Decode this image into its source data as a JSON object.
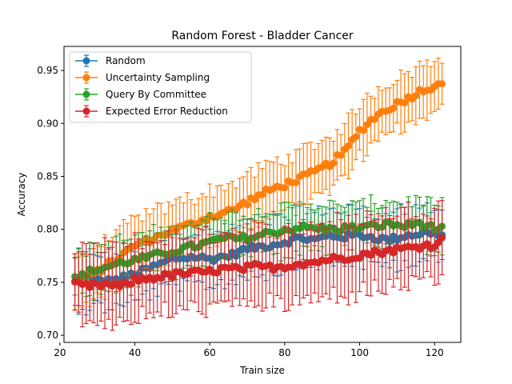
{
  "chart_data": {
    "type": "line",
    "title": "Random Forest - Bladder Cancer",
    "xlabel": "Train size",
    "ylabel": "Accuracy",
    "xlim": [
      21.1,
      127
    ],
    "ylim": [
      0.6933,
      0.9727
    ],
    "xticks": [
      20,
      40,
      60,
      80,
      100,
      120
    ],
    "xtick_labels": [
      "20",
      "40",
      "60",
      "80",
      "100",
      "120"
    ],
    "yticks": [
      0.7,
      0.75,
      0.8,
      0.85,
      0.9,
      0.95
    ],
    "ytick_labels": [
      "0.70",
      "0.75",
      "0.80",
      "0.85",
      "0.90",
      "0.95"
    ],
    "legend_position": "upper-left",
    "grid": false,
    "x_start": 24,
    "x_end": 122,
    "series": [
      {
        "name": "Random",
        "color": "#1f77b4",
        "anchors": [
          [
            24,
            0.75
          ],
          [
            30,
            0.752
          ],
          [
            34,
            0.751
          ],
          [
            40,
            0.758
          ],
          [
            46,
            0.766
          ],
          [
            50,
            0.772
          ],
          [
            56,
            0.774
          ],
          [
            60,
            0.772
          ],
          [
            66,
            0.776
          ],
          [
            70,
            0.782
          ],
          [
            76,
            0.785
          ],
          [
            80,
            0.788
          ],
          [
            84,
            0.792
          ],
          [
            88,
            0.79
          ],
          [
            92,
            0.794
          ],
          [
            96,
            0.793
          ],
          [
            100,
            0.795
          ],
          [
            104,
            0.792
          ],
          [
            108,
            0.79
          ],
          [
            112,
            0.794
          ],
          [
            116,
            0.796
          ],
          [
            120,
            0.797
          ],
          [
            122,
            0.795
          ]
        ],
        "err": 0.025
      },
      {
        "name": "Uncertainty Sampling",
        "color": "#ff7f0e",
        "anchors": [
          [
            24,
            0.749
          ],
          [
            28,
            0.755
          ],
          [
            32,
            0.765
          ],
          [
            36,
            0.774
          ],
          [
            40,
            0.785
          ],
          [
            46,
            0.793
          ],
          [
            50,
            0.799
          ],
          [
            56,
            0.806
          ],
          [
            60,
            0.812
          ],
          [
            66,
            0.818
          ],
          [
            70,
            0.826
          ],
          [
            76,
            0.837
          ],
          [
            80,
            0.842
          ],
          [
            84,
            0.848
          ],
          [
            88,
            0.854
          ],
          [
            92,
            0.862
          ],
          [
            96,
            0.873
          ],
          [
            100,
            0.893
          ],
          [
            104,
            0.906
          ],
          [
            108,
            0.915
          ],
          [
            112,
            0.922
          ],
          [
            116,
            0.93
          ],
          [
            120,
            0.936
          ],
          [
            122,
            0.94
          ]
        ],
        "err": 0.025
      },
      {
        "name": "Query By Committee",
        "color": "#2ca02c",
        "anchors": [
          [
            24,
            0.753
          ],
          [
            28,
            0.76
          ],
          [
            32,
            0.764
          ],
          [
            36,
            0.768
          ],
          [
            40,
            0.771
          ],
          [
            44,
            0.774
          ],
          [
            48,
            0.778
          ],
          [
            52,
            0.781
          ],
          [
            56,
            0.784
          ],
          [
            60,
            0.788
          ],
          [
            64,
            0.792
          ],
          [
            68,
            0.791
          ],
          [
            72,
            0.793
          ],
          [
            76,
            0.797
          ],
          [
            80,
            0.799
          ],
          [
            84,
            0.802
          ],
          [
            88,
            0.801
          ],
          [
            92,
            0.8
          ],
          [
            96,
            0.801
          ],
          [
            100,
            0.802
          ],
          [
            104,
            0.803
          ],
          [
            108,
            0.805
          ],
          [
            112,
            0.803
          ],
          [
            116,
            0.806
          ],
          [
            120,
            0.801
          ],
          [
            122,
            0.8
          ]
        ],
        "err": 0.022
      },
      {
        "name": "Expected Error Reduction",
        "color": "#d62728",
        "anchors": [
          [
            24,
            0.748
          ],
          [
            28,
            0.746
          ],
          [
            32,
            0.748
          ],
          [
            36,
            0.746
          ],
          [
            40,
            0.752
          ],
          [
            44,
            0.754
          ],
          [
            48,
            0.756
          ],
          [
            52,
            0.758
          ],
          [
            56,
            0.759
          ],
          [
            60,
            0.76
          ],
          [
            64,
            0.763
          ],
          [
            68,
            0.762
          ],
          [
            72,
            0.765
          ],
          [
            76,
            0.764
          ],
          [
            80,
            0.765
          ],
          [
            84,
            0.768
          ],
          [
            88,
            0.769
          ],
          [
            92,
            0.772
          ],
          [
            96,
            0.773
          ],
          [
            100,
            0.776
          ],
          [
            104,
            0.778
          ],
          [
            108,
            0.78
          ],
          [
            112,
            0.782
          ],
          [
            116,
            0.784
          ],
          [
            120,
            0.786
          ],
          [
            122,
            0.79
          ]
        ],
        "err": 0.035
      }
    ]
  }
}
